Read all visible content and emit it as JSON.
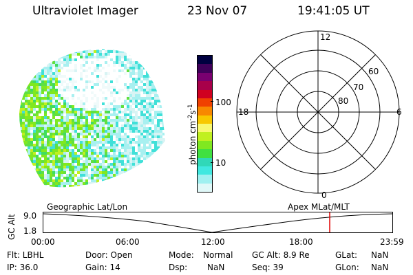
{
  "header": {
    "instrument": "Ultraviolet Imager",
    "date": "23 Nov 07",
    "time": "19:41:05 UT"
  },
  "colorbar": {
    "unit_label": "photon cm",
    "exp1": "-2",
    "mid_label": "s",
    "exp2": "-1",
    "ticks": [
      "100",
      "10"
    ],
    "colors": [
      "#000040",
      "#40005a",
      "#7a0070",
      "#a8004a",
      "#d00020",
      "#f04000",
      "#f88800",
      "#f8c800",
      "#f8f870",
      "#c0f020",
      "#80e820",
      "#40e040",
      "#30d8b8",
      "#40e8e0",
      "#a0f0f0",
      "#e0f8f8"
    ]
  },
  "polar_plot": {
    "clock_labels": {
      "top": "12",
      "left": "18",
      "right": "6",
      "bottom": "0"
    },
    "lat_labels": [
      "60",
      "70",
      "80"
    ]
  },
  "timeline": {
    "left_label": "Geographic Lat/Lon",
    "right_label": "Apex MLat/MLT",
    "axis_title": "GC Alt",
    "y_ticks": [
      "9.0",
      "1.8"
    ],
    "x_ticks": [
      "00:00",
      "06:00",
      "12:00",
      "18:00",
      "23:59"
    ],
    "current_marker_time": "19:41",
    "marker_color": "#e00000"
  },
  "info": {
    "flt": "Flt: LBHL",
    "ip": "IP: 36.0",
    "door": "Door: Open",
    "gain": "Gain: 14",
    "mode_key": "Mode:",
    "mode_val": "Normal",
    "dsp_key": "Dsp:",
    "dsp_val": "NaN",
    "gcalt": "GC Alt: 8.9 Re",
    "seq": "Seq: 39",
    "glat_key": "GLat:",
    "glat_val": "NaN",
    "glon_key": "GLon:",
    "glon_val": "NaN"
  }
}
